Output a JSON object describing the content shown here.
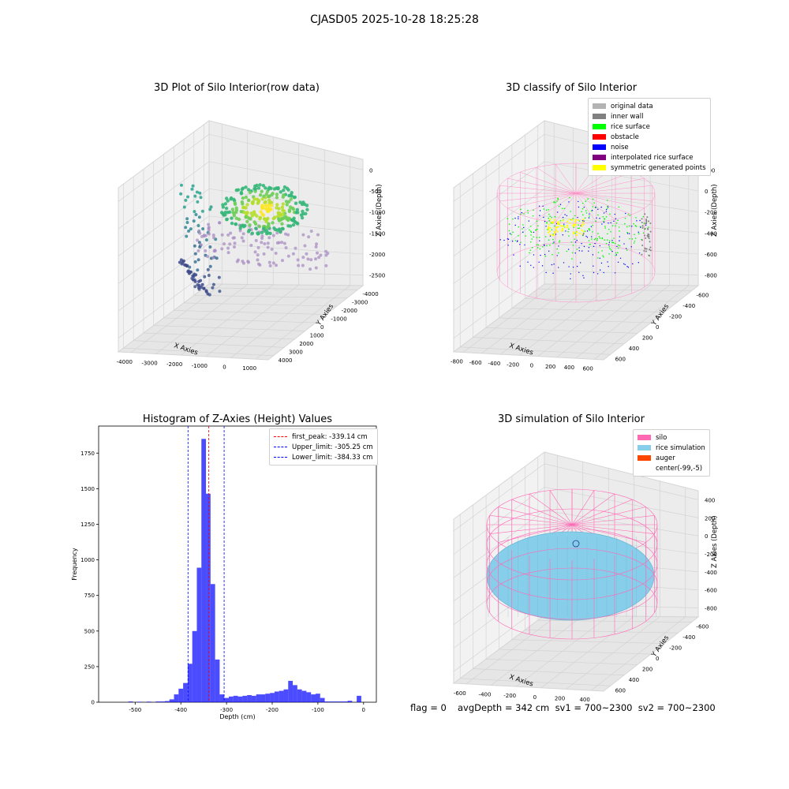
{
  "suptitle": "CJASD05 2025-10-28 18:25:28",
  "panels": {
    "raw": {
      "title": "3D Plot of Silo Interior(row data)",
      "xlabel": "X Axies",
      "ylabel": "Y Axies",
      "zlabel": "Z Axies (Depth)",
      "xticks": [
        "-4000",
        "-3000",
        "-2000",
        "-1000",
        "0",
        "1000"
      ],
      "yticks": [
        "4000",
        "3000",
        "2000",
        "1000",
        "0",
        "-1000",
        "-2000",
        "-3000",
        "-4000"
      ],
      "zticks": [
        "0",
        "-500",
        "-1000",
        "-1500",
        "-2000",
        "-2500"
      ]
    },
    "classify": {
      "title": "3D classify of Silo Interior",
      "xlabel": "X Axies",
      "ylabel": "Y Axies",
      "zlabel": "Z Axies (Depth)",
      "xticks": [
        "-800",
        "-600",
        "-400",
        "-200",
        "0",
        "200",
        "400",
        "600"
      ],
      "yticks": [
        "600",
        "400",
        "200",
        "0",
        "-200",
        "-400",
        "-600"
      ],
      "zticks": [
        "200",
        "0",
        "-200",
        "-400",
        "-600",
        "-800"
      ],
      "legend": [
        {
          "label": "original data",
          "color": "#b3b3b3"
        },
        {
          "label": "inner wall",
          "color": "#808080"
        },
        {
          "label": "rice surface",
          "color": "#00ff00"
        },
        {
          "label": "obstacle",
          "color": "#ff0000"
        },
        {
          "label": "noise",
          "color": "#0000ff"
        },
        {
          "label": "interpolated rice surface",
          "color": "#800080"
        },
        {
          "label": "symmetric generated points",
          "color": "#ffff00"
        }
      ]
    },
    "simulation": {
      "title": "3D simulation of Silo Interior",
      "xlabel": "X Axies",
      "ylabel": "Y Axies",
      "zlabel": "Z Axies (Depth)",
      "xticks": [
        "-600",
        "-400",
        "-200",
        "0",
        "200",
        "400"
      ],
      "yticks": [
        "600",
        "400",
        "200",
        "0",
        "-200",
        "-400",
        "-600"
      ],
      "zticks": [
        "400",
        "200",
        "0",
        "-200",
        "-400",
        "-600",
        "-800"
      ],
      "legend": [
        {
          "label": "silo",
          "color": "#ff69b4"
        },
        {
          "label": "rice simulation",
          "color": "#87ceeb"
        },
        {
          "label": "auger",
          "color": "#ff4500"
        },
        {
          "label": "center(-99,-5)",
          "color": "#ffffff"
        }
      ],
      "footer": {
        "flag": "flag = 0",
        "avg": "avgDepth = 342 cm  sv1 = 700~2300  sv2 = 700~2300"
      }
    }
  },
  "chart_data": [
    {
      "type": "scatter",
      "title": "3D Plot of Silo Interior(row data)",
      "xlabel": "X Axies",
      "ylabel": "Y Axies",
      "zlabel": "Z Axies (Depth)",
      "xlim": [
        -4500,
        1200
      ],
      "ylim": [
        -4200,
        4200
      ],
      "zlim": [
        -2700,
        100
      ],
      "colormap": "viridis"
    },
    {
      "type": "scatter",
      "title": "3D classify of Silo Interior",
      "xlabel": "X Axies",
      "ylabel": "Y Axies",
      "zlabel": "Z Axies (Depth)",
      "xlim": [
        -850,
        650
      ],
      "ylim": [
        -650,
        650
      ],
      "zlim": [
        -900,
        300
      ]
    },
    {
      "type": "histogram",
      "title": "Histogram of Z-Axies (Height) Values",
      "xlabel": "Depth (cm)",
      "ylabel": "Frequency",
      "xlim": [
        -580,
        28
      ],
      "ylim": [
        0,
        1940
      ],
      "xticks": [
        -500,
        -400,
        -300,
        -200,
        -100,
        0
      ],
      "yticks": [
        0,
        250,
        500,
        750,
        1000,
        1250,
        1500,
        1750
      ],
      "bin_width": 10,
      "bins": [
        {
          "x": -510,
          "count": 5
        },
        {
          "x": -490,
          "count": 3
        },
        {
          "x": -470,
          "count": 4
        },
        {
          "x": -450,
          "count": 5
        },
        {
          "x": -440,
          "count": 5
        },
        {
          "x": -430,
          "count": 8
        },
        {
          "x": -420,
          "count": 20
        },
        {
          "x": -410,
          "count": 55
        },
        {
          "x": -400,
          "count": 95
        },
        {
          "x": -390,
          "count": 135
        },
        {
          "x": -380,
          "count": 270
        },
        {
          "x": -370,
          "count": 500
        },
        {
          "x": -360,
          "count": 945
        },
        {
          "x": -350,
          "count": 1850
        },
        {
          "x": -340,
          "count": 1465
        },
        {
          "x": -330,
          "count": 830
        },
        {
          "x": -320,
          "count": 300
        },
        {
          "x": -310,
          "count": 55
        },
        {
          "x": -300,
          "count": 30
        },
        {
          "x": -290,
          "count": 40
        },
        {
          "x": -280,
          "count": 45
        },
        {
          "x": -270,
          "count": 40
        },
        {
          "x": -260,
          "count": 45
        },
        {
          "x": -250,
          "count": 50
        },
        {
          "x": -240,
          "count": 45
        },
        {
          "x": -230,
          "count": 55
        },
        {
          "x": -220,
          "count": 55
        },
        {
          "x": -210,
          "count": 60
        },
        {
          "x": -200,
          "count": 65
        },
        {
          "x": -190,
          "count": 75
        },
        {
          "x": -180,
          "count": 80
        },
        {
          "x": -170,
          "count": 90
        },
        {
          "x": -160,
          "count": 150
        },
        {
          "x": -150,
          "count": 120
        },
        {
          "x": -140,
          "count": 90
        },
        {
          "x": -130,
          "count": 80
        },
        {
          "x": -120,
          "count": 70
        },
        {
          "x": -110,
          "count": 55
        },
        {
          "x": -100,
          "count": 60
        },
        {
          "x": -90,
          "count": 30
        },
        {
          "x": -80,
          "count": 5
        },
        {
          "x": -70,
          "count": 5
        },
        {
          "x": -60,
          "count": 5
        },
        {
          "x": -50,
          "count": 5
        },
        {
          "x": -40,
          "count": 5
        },
        {
          "x": -30,
          "count": 10
        },
        {
          "x": -10,
          "count": 45
        }
      ],
      "color": "#0000ff",
      "lines": [
        {
          "label": "first_peak: -339.14 cm",
          "x": -339.14,
          "color": "#ff0000"
        },
        {
          "label": "Upper_limit: -305.25 cm",
          "x": -305.25,
          "color": "#0000ff"
        },
        {
          "label": "Lower_limit: -384.33 cm",
          "x": -384.33,
          "color": "#0000ff"
        }
      ]
    },
    {
      "type": "scatter",
      "title": "3D simulation of Silo Interior",
      "xlabel": "X Axies",
      "ylabel": "Y Axies",
      "zlabel": "Z Axies (Depth)",
      "xlim": [
        -700,
        500
      ],
      "ylim": [
        -650,
        650
      ],
      "zlim": [
        -900,
        450
      ]
    }
  ]
}
